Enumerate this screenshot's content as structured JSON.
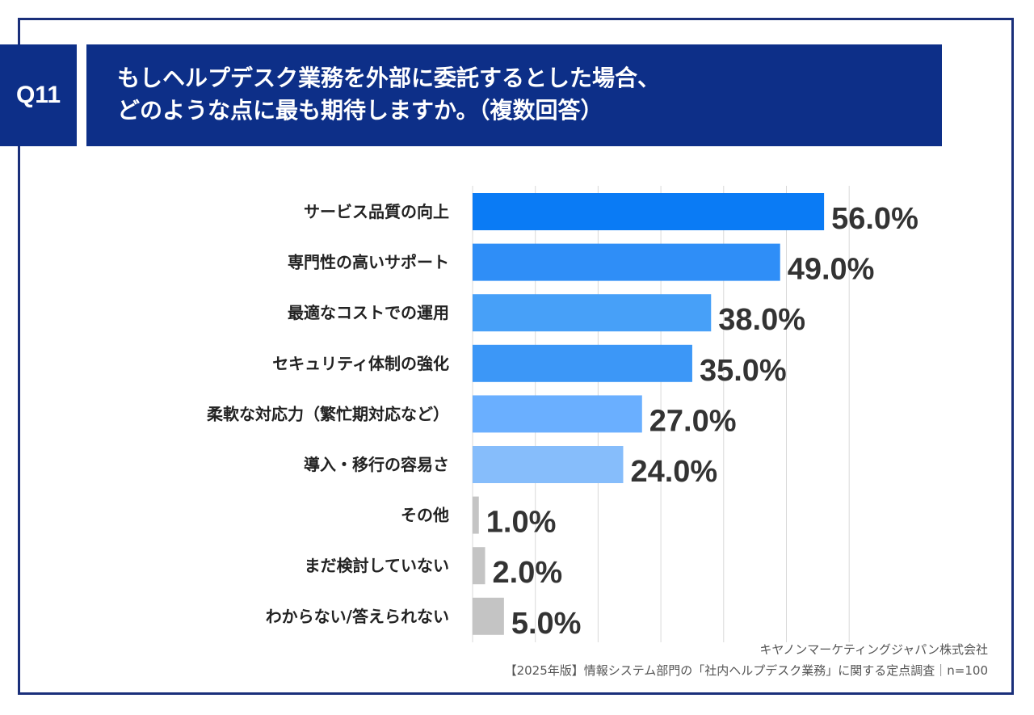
{
  "question": {
    "number": "Q11",
    "title_line1": "もしヘルプデスク業務を外部に委託するとした場合、",
    "title_line2": "どのような点に最も期待しますか。（複数回答）"
  },
  "chart_data": {
    "type": "bar",
    "orientation": "horizontal",
    "categories": [
      "サービス品質の向上",
      "専門性の高いサポート",
      "最適なコストでの運用",
      "セキュリティ体制の強化",
      "柔軟な対応力（繁忙期対応など）",
      "導入・移行の容易さ",
      "その他",
      "まだ検討していない",
      "わからない/答えられない"
    ],
    "values": [
      56.0,
      49.0,
      38.0,
      35.0,
      27.0,
      24.0,
      1.0,
      2.0,
      5.0
    ],
    "value_labels": [
      "56.0%",
      "49.0%",
      "38.0%",
      "35.0%",
      "27.0%",
      "24.0%",
      "1.0%",
      "2.0%",
      "5.0%"
    ],
    "bar_colors": [
      "#0a7bf5",
      "#2f8ef7",
      "#47a0f8",
      "#3c97f7",
      "#6aafff",
      "#86bdfb",
      "#c4c4c4",
      "#c4c4c4",
      "#c4c4c4"
    ],
    "xlim": [
      0,
      60
    ],
    "grid": true,
    "title": "",
    "xlabel": "",
    "ylabel": ""
  },
  "source": {
    "company": "キヤノンマーケティングジャパン株式会社",
    "survey": "【2025年版】情報システム部門の「社内ヘルプデスク業務」に関する定点調査｜n=100"
  }
}
